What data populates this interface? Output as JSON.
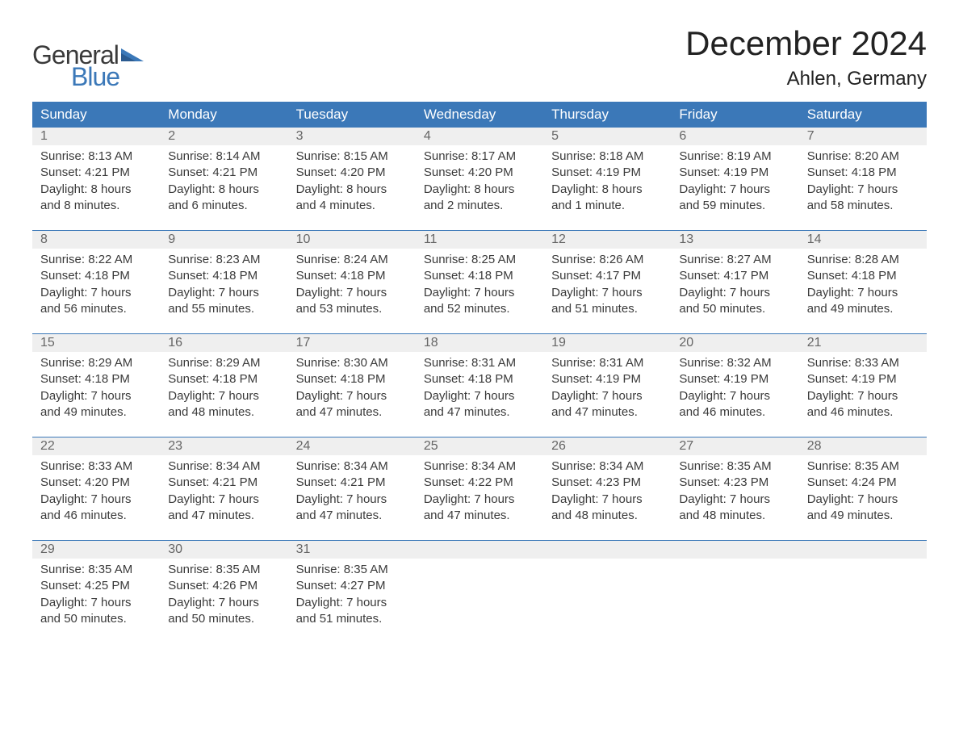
{
  "logo": {
    "text_general": "General",
    "text_blue": "Blue",
    "general_color": "#3a3a3a",
    "blue_color": "#3b78b8"
  },
  "title": "December 2024",
  "location": "Ahlen, Germany",
  "colors": {
    "header_bg": "#3b78b8",
    "header_text": "#ffffff",
    "daynum_bg": "#efefef",
    "daynum_text": "#666666",
    "body_text": "#3a3a3a",
    "rule": "#3b78b8"
  },
  "day_headers": [
    "Sunday",
    "Monday",
    "Tuesday",
    "Wednesday",
    "Thursday",
    "Friday",
    "Saturday"
  ],
  "weeks": [
    [
      {
        "n": "1",
        "sunrise": "Sunrise: 8:13 AM",
        "sunset": "Sunset: 4:21 PM",
        "day1": "Daylight: 8 hours",
        "day2": "and 8 minutes."
      },
      {
        "n": "2",
        "sunrise": "Sunrise: 8:14 AM",
        "sunset": "Sunset: 4:21 PM",
        "day1": "Daylight: 8 hours",
        "day2": "and 6 minutes."
      },
      {
        "n": "3",
        "sunrise": "Sunrise: 8:15 AM",
        "sunset": "Sunset: 4:20 PM",
        "day1": "Daylight: 8 hours",
        "day2": "and 4 minutes."
      },
      {
        "n": "4",
        "sunrise": "Sunrise: 8:17 AM",
        "sunset": "Sunset: 4:20 PM",
        "day1": "Daylight: 8 hours",
        "day2": "and 2 minutes."
      },
      {
        "n": "5",
        "sunrise": "Sunrise: 8:18 AM",
        "sunset": "Sunset: 4:19 PM",
        "day1": "Daylight: 8 hours",
        "day2": "and 1 minute."
      },
      {
        "n": "6",
        "sunrise": "Sunrise: 8:19 AM",
        "sunset": "Sunset: 4:19 PM",
        "day1": "Daylight: 7 hours",
        "day2": "and 59 minutes."
      },
      {
        "n": "7",
        "sunrise": "Sunrise: 8:20 AM",
        "sunset": "Sunset: 4:18 PM",
        "day1": "Daylight: 7 hours",
        "day2": "and 58 minutes."
      }
    ],
    [
      {
        "n": "8",
        "sunrise": "Sunrise: 8:22 AM",
        "sunset": "Sunset: 4:18 PM",
        "day1": "Daylight: 7 hours",
        "day2": "and 56 minutes."
      },
      {
        "n": "9",
        "sunrise": "Sunrise: 8:23 AM",
        "sunset": "Sunset: 4:18 PM",
        "day1": "Daylight: 7 hours",
        "day2": "and 55 minutes."
      },
      {
        "n": "10",
        "sunrise": "Sunrise: 8:24 AM",
        "sunset": "Sunset: 4:18 PM",
        "day1": "Daylight: 7 hours",
        "day2": "and 53 minutes."
      },
      {
        "n": "11",
        "sunrise": "Sunrise: 8:25 AM",
        "sunset": "Sunset: 4:18 PM",
        "day1": "Daylight: 7 hours",
        "day2": "and 52 minutes."
      },
      {
        "n": "12",
        "sunrise": "Sunrise: 8:26 AM",
        "sunset": "Sunset: 4:17 PM",
        "day1": "Daylight: 7 hours",
        "day2": "and 51 minutes."
      },
      {
        "n": "13",
        "sunrise": "Sunrise: 8:27 AM",
        "sunset": "Sunset: 4:17 PM",
        "day1": "Daylight: 7 hours",
        "day2": "and 50 minutes."
      },
      {
        "n": "14",
        "sunrise": "Sunrise: 8:28 AM",
        "sunset": "Sunset: 4:18 PM",
        "day1": "Daylight: 7 hours",
        "day2": "and 49 minutes."
      }
    ],
    [
      {
        "n": "15",
        "sunrise": "Sunrise: 8:29 AM",
        "sunset": "Sunset: 4:18 PM",
        "day1": "Daylight: 7 hours",
        "day2": "and 49 minutes."
      },
      {
        "n": "16",
        "sunrise": "Sunrise: 8:29 AM",
        "sunset": "Sunset: 4:18 PM",
        "day1": "Daylight: 7 hours",
        "day2": "and 48 minutes."
      },
      {
        "n": "17",
        "sunrise": "Sunrise: 8:30 AM",
        "sunset": "Sunset: 4:18 PM",
        "day1": "Daylight: 7 hours",
        "day2": "and 47 minutes."
      },
      {
        "n": "18",
        "sunrise": "Sunrise: 8:31 AM",
        "sunset": "Sunset: 4:18 PM",
        "day1": "Daylight: 7 hours",
        "day2": "and 47 minutes."
      },
      {
        "n": "19",
        "sunrise": "Sunrise: 8:31 AM",
        "sunset": "Sunset: 4:19 PM",
        "day1": "Daylight: 7 hours",
        "day2": "and 47 minutes."
      },
      {
        "n": "20",
        "sunrise": "Sunrise: 8:32 AM",
        "sunset": "Sunset: 4:19 PM",
        "day1": "Daylight: 7 hours",
        "day2": "and 46 minutes."
      },
      {
        "n": "21",
        "sunrise": "Sunrise: 8:33 AM",
        "sunset": "Sunset: 4:19 PM",
        "day1": "Daylight: 7 hours",
        "day2": "and 46 minutes."
      }
    ],
    [
      {
        "n": "22",
        "sunrise": "Sunrise: 8:33 AM",
        "sunset": "Sunset: 4:20 PM",
        "day1": "Daylight: 7 hours",
        "day2": "and 46 minutes."
      },
      {
        "n": "23",
        "sunrise": "Sunrise: 8:34 AM",
        "sunset": "Sunset: 4:21 PM",
        "day1": "Daylight: 7 hours",
        "day2": "and 47 minutes."
      },
      {
        "n": "24",
        "sunrise": "Sunrise: 8:34 AM",
        "sunset": "Sunset: 4:21 PM",
        "day1": "Daylight: 7 hours",
        "day2": "and 47 minutes."
      },
      {
        "n": "25",
        "sunrise": "Sunrise: 8:34 AM",
        "sunset": "Sunset: 4:22 PM",
        "day1": "Daylight: 7 hours",
        "day2": "and 47 minutes."
      },
      {
        "n": "26",
        "sunrise": "Sunrise: 8:34 AM",
        "sunset": "Sunset: 4:23 PM",
        "day1": "Daylight: 7 hours",
        "day2": "and 48 minutes."
      },
      {
        "n": "27",
        "sunrise": "Sunrise: 8:35 AM",
        "sunset": "Sunset: 4:23 PM",
        "day1": "Daylight: 7 hours",
        "day2": "and 48 minutes."
      },
      {
        "n": "28",
        "sunrise": "Sunrise: 8:35 AM",
        "sunset": "Sunset: 4:24 PM",
        "day1": "Daylight: 7 hours",
        "day2": "and 49 minutes."
      }
    ],
    [
      {
        "n": "29",
        "sunrise": "Sunrise: 8:35 AM",
        "sunset": "Sunset: 4:25 PM",
        "day1": "Daylight: 7 hours",
        "day2": "and 50 minutes."
      },
      {
        "n": "30",
        "sunrise": "Sunrise: 8:35 AM",
        "sunset": "Sunset: 4:26 PM",
        "day1": "Daylight: 7 hours",
        "day2": "and 50 minutes."
      },
      {
        "n": "31",
        "sunrise": "Sunrise: 8:35 AM",
        "sunset": "Sunset: 4:27 PM",
        "day1": "Daylight: 7 hours",
        "day2": "and 51 minutes."
      },
      null,
      null,
      null,
      null
    ]
  ]
}
